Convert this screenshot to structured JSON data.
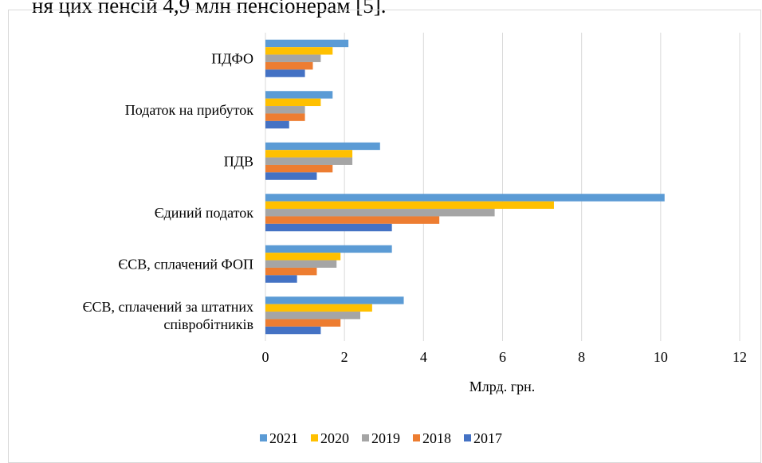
{
  "text_above": "ня цих пенсій 4,9 млн пенсіонерам [5].",
  "chart_data": {
    "type": "barh",
    "xlabel": "Млрд. грн.",
    "categories": [
      "ПДФО",
      "Податок на прибуток",
      "ПДВ",
      "Єдиний податок",
      "ЄСВ, сплачений ФОП",
      "ЄСВ, сплачений за штатних\nспівробітників"
    ],
    "series": [
      {
        "name": "2021",
        "color": "#5b9bd5",
        "values": [
          2.1,
          1.7,
          2.9,
          10.1,
          3.2,
          3.5
        ]
      },
      {
        "name": "2020",
        "color": "#ffc000",
        "values": [
          1.7,
          1.4,
          2.2,
          7.3,
          1.9,
          2.7
        ]
      },
      {
        "name": "2019",
        "color": "#a5a5a5",
        "values": [
          1.4,
          1.0,
          2.2,
          5.8,
          1.8,
          2.4
        ]
      },
      {
        "name": "2018",
        "color": "#ed7d31",
        "values": [
          1.2,
          1.0,
          1.7,
          4.4,
          1.3,
          1.9
        ]
      },
      {
        "name": "2017",
        "color": "#4472c4",
        "values": [
          1.0,
          0.6,
          1.3,
          3.2,
          0.8,
          1.4
        ]
      }
    ],
    "xlim": [
      0,
      12
    ],
    "xticks": [
      0,
      2,
      4,
      6,
      8,
      10,
      12
    ],
    "grid": true,
    "legend": "bottom"
  }
}
